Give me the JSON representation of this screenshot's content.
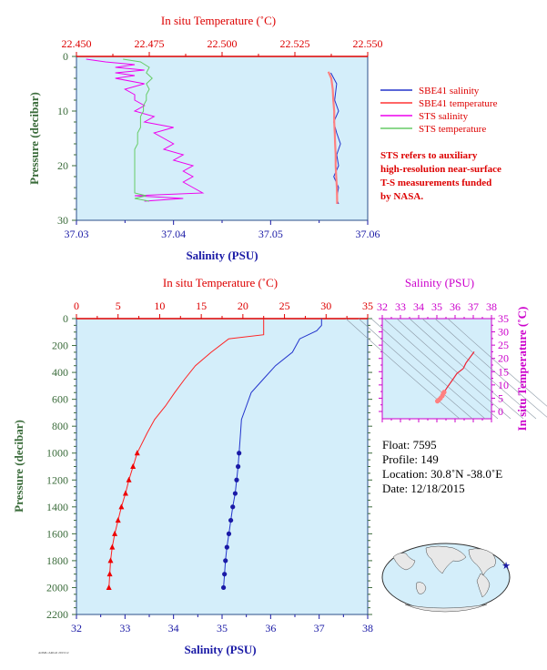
{
  "chart_data": [
    {
      "type": "line",
      "top_axis_label": "In situ Temperature (˚C)",
      "top_ticks": [
        "22.450",
        "22.475",
        "22.500",
        "22.525",
        "22.550"
      ],
      "top_range": [
        22.45,
        22.55
      ],
      "bottom_axis_label": "Salinity (PSU)",
      "bottom_ticks": [
        "37.03",
        "37.04",
        "37.05",
        "37.06"
      ],
      "bottom_range": [
        37.03,
        37.06
      ],
      "y_axis_label": "Pressure (decibar)",
      "y_ticks": [
        "0",
        "10",
        "20",
        "30"
      ],
      "y_range": [
        0,
        30
      ],
      "legend": [
        {
          "label": "SBE41 salinity",
          "color": "#2233cc"
        },
        {
          "label": "SBE41 temperature",
          "color": "#ff3333"
        },
        {
          "label": "STS salinity",
          "color": "#ee00ee"
        },
        {
          "label": "STS temperature",
          "color": "#66cc66"
        }
      ],
      "note": [
        "STS refers to auxiliary",
        "high-resolution near-surface",
        "T-S measurements funded",
        "by NASA."
      ],
      "series": [
        {
          "name": "SBE41 salinity",
          "x_axis": "salinity",
          "p": [
            3,
            5,
            8,
            10,
            12,
            14,
            16,
            18,
            20,
            22,
            24,
            26,
            27
          ],
          "x": [
            37.0562,
            37.0568,
            37.0566,
            37.057,
            37.0565,
            37.0568,
            37.0572,
            37.0568,
            37.057,
            37.0565,
            37.057,
            37.0568,
            37.057
          ]
        },
        {
          "name": "SBE41 temperature",
          "x_axis": "temperature",
          "p": [
            2.8,
            4,
            6,
            8,
            10,
            12,
            14,
            16,
            18,
            20,
            22,
            24,
            26,
            27
          ],
          "x": [
            22.5365,
            22.5375,
            22.538,
            22.5382,
            22.5385,
            22.5385,
            22.5387,
            22.5388,
            22.539,
            22.539,
            22.5392,
            22.5394,
            22.5395,
            22.5395
          ]
        },
        {
          "name": "STS salinity",
          "x_axis": "salinity",
          "p": [
            0.5,
            1,
            1.5,
            2,
            2.5,
            3,
            3.5,
            4,
            5,
            6,
            7,
            8,
            9,
            10,
            11,
            12,
            13,
            14,
            15,
            16,
            17,
            18,
            19,
            20,
            21,
            22,
            23,
            24,
            25,
            25.5,
            26,
            26.5
          ],
          "x": [
            37.031,
            37.033,
            37.036,
            37.034,
            37.037,
            37.034,
            37.036,
            37.034,
            37.037,
            37.035,
            37.036,
            37.036,
            37.037,
            37.036,
            37.038,
            37.037,
            37.04,
            37.038,
            37.039,
            37.04,
            37.039,
            37.041,
            37.04,
            37.042,
            37.041,
            37.042,
            37.041,
            37.042,
            37.043,
            37.036,
            37.041,
            37.037
          ]
        },
        {
          "name": "STS temperature",
          "x_axis": "temperature",
          "p": [
            0.5,
            1,
            2,
            3,
            4,
            5,
            6,
            7,
            8,
            9,
            10,
            11,
            12,
            13,
            14,
            15,
            16,
            17,
            18,
            19,
            20,
            21,
            22,
            23,
            24,
            25,
            25.5,
            26,
            26.5
          ],
          "x": [
            22.466,
            22.472,
            22.475,
            22.474,
            22.476,
            22.474,
            22.475,
            22.474,
            22.474,
            22.473,
            22.473,
            22.472,
            22.472,
            22.472,
            22.471,
            22.471,
            22.471,
            22.47,
            22.47,
            22.47,
            22.47,
            22.47,
            22.47,
            22.47,
            22.47,
            22.47,
            22.474,
            22.47,
            22.475
          ]
        }
      ]
    },
    {
      "type": "line",
      "top_axis_label": "In situ Temperature (˚C)",
      "top_ticks": [
        "0",
        "5",
        "10",
        "15",
        "20",
        "25",
        "30",
        "35"
      ],
      "top_range": [
        0,
        35
      ],
      "bottom_axis_label": "Salinity (PSU)",
      "bottom_ticks": [
        "32",
        "33",
        "34",
        "35",
        "36",
        "37",
        "38"
      ],
      "bottom_range": [
        32,
        38
      ],
      "y_axis_label": "Pressure (decibar)",
      "y_ticks": [
        "0",
        "200",
        "400",
        "600",
        "800",
        "1000",
        "1200",
        "1400",
        "1600",
        "1800",
        "2000",
        "2200"
      ],
      "y_range": [
        0,
        2200
      ],
      "series": [
        {
          "name": "temperature",
          "x_axis": "temperature",
          "p": [
            0,
            50,
            120,
            150,
            250,
            350,
            450,
            550,
            650,
            750,
            850,
            950,
            1000,
            1100,
            1200,
            1300,
            1400,
            1500,
            1600,
            1700,
            1800,
            1900,
            2000
          ],
          "x": [
            22.5,
            22.5,
            22.5,
            18.3,
            16.2,
            14.3,
            13,
            11.8,
            10.7,
            9.4,
            8.5,
            7.7,
            7.3,
            6.8,
            6.3,
            5.9,
            5.4,
            5,
            4.6,
            4.3,
            4.1,
            4,
            3.9
          ],
          "markers_from": 1000
        },
        {
          "name": "salinity",
          "x_axis": "salinity",
          "p": [
            0,
            50,
            90,
            150,
            250,
            350,
            450,
            550,
            650,
            750,
            850,
            1000,
            1100,
            1200,
            1300,
            1400,
            1500,
            1600,
            1700,
            1800,
            1900,
            2000
          ],
          "x": [
            37.05,
            37.05,
            36.95,
            36.6,
            36.45,
            36.1,
            35.85,
            35.6,
            35.5,
            35.4,
            35.38,
            35.35,
            35.33,
            35.3,
            35.27,
            35.22,
            35.18,
            35.14,
            35.1,
            35.07,
            35.05,
            35.03
          ],
          "markers_from": 1000
        }
      ]
    },
    {
      "type": "scatter",
      "top_axis_label": "Salinity (PSU)",
      "top_ticks": [
        "32",
        "33",
        "34",
        "35",
        "36",
        "37",
        "38"
      ],
      "right_axis_label": "In situ Temperature (˚C)",
      "right_ticks": [
        "0",
        "5",
        "10",
        "15",
        "20",
        "25",
        "30",
        "35"
      ],
      "series": [
        {
          "name": "T-S",
          "s": [
            35.03,
            35.1,
            35.2,
            35.3,
            35.35,
            35.4,
            35.6,
            35.85,
            36.1,
            36.45,
            36.6,
            37.05
          ],
          "t": [
            3.9,
            4.3,
            5,
            5.9,
            6.8,
            7.3,
            9.4,
            11.8,
            14.3,
            16.2,
            18.3,
            22.5
          ]
        }
      ]
    }
  ],
  "float_info": {
    "float": "Float:  7595",
    "profile": "Profile:  149",
    "location": "Location:  30.8˚N  -38.0˚E",
    "date": "Date:  12/18/2015"
  },
  "footer_code": "AOML/ARGO 2015/12",
  "colors": {
    "plot_bg": "#d4eefa",
    "red": "#dd0000",
    "blue": "#1a1aa6",
    "magenta": "#cc00cc"
  }
}
